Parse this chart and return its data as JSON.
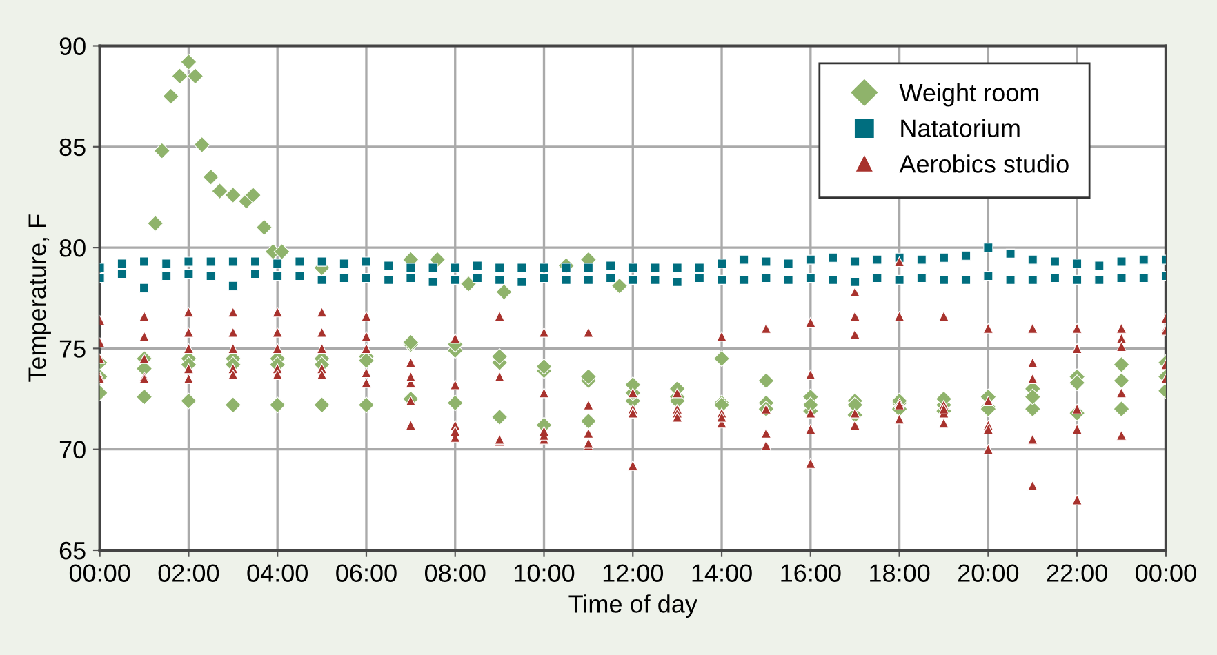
{
  "chart_data": {
    "type": "scatter",
    "xlabel": "Time of day",
    "ylabel": "Temperature, F",
    "xlim": [
      0,
      24
    ],
    "ylim": [
      65,
      90
    ],
    "xticks": [
      {
        "value": 0,
        "label": "00:00"
      },
      {
        "value": 2,
        "label": "02:00"
      },
      {
        "value": 4,
        "label": "04:00"
      },
      {
        "value": 6,
        "label": "06:00"
      },
      {
        "value": 8,
        "label": "08:00"
      },
      {
        "value": 10,
        "label": "10:00"
      },
      {
        "value": 12,
        "label": "12:00"
      },
      {
        "value": 14,
        "label": "14:00"
      },
      {
        "value": 16,
        "label": "16:00"
      },
      {
        "value": 18,
        "label": "18:00"
      },
      {
        "value": 20,
        "label": "20:00"
      },
      {
        "value": 22,
        "label": "22:00"
      },
      {
        "value": 24,
        "label": "00:00"
      }
    ],
    "yticks": [
      65,
      70,
      75,
      80,
      85,
      90
    ],
    "grid": true,
    "legend": "top right",
    "series": [
      {
        "name": "Weight room",
        "color": "#8fb36b",
        "marker": "diamond",
        "x": [
          1.25,
          1.4,
          1.6,
          1.8,
          2.0,
          2.15,
          2.3,
          2.5,
          2.7,
          3.0,
          3.3,
          3.45,
          3.7,
          3.9,
          4.1,
          5.0,
          7.0,
          7.6,
          8.3,
          9.1,
          10.5,
          11.0,
          11.7,
          0,
          1,
          2,
          3,
          4,
          5,
          6,
          7,
          8,
          9,
          10,
          11,
          12,
          13,
          14,
          15,
          16,
          17,
          18,
          19,
          20,
          21,
          22,
          23,
          24,
          0,
          1,
          2,
          3,
          4,
          5,
          6,
          7,
          8,
          9,
          10,
          11,
          12,
          13,
          14,
          15,
          16,
          17,
          18,
          19,
          20,
          21,
          22,
          23,
          24,
          0,
          1,
          2,
          3,
          4,
          5,
          6,
          7,
          8,
          9,
          10,
          11,
          12,
          13,
          14,
          15,
          16,
          17,
          18,
          19,
          20,
          21,
          22,
          23,
          24
        ],
        "values": [
          81.2,
          84.8,
          87.5,
          88.5,
          89.2,
          88.5,
          85.1,
          83.5,
          82.8,
          82.6,
          82.3,
          82.6,
          81.0,
          79.8,
          79.8,
          79.0,
          79.4,
          79.4,
          78.2,
          77.8,
          79.1,
          79.4,
          78.1,
          72.8,
          72.6,
          72.4,
          72.2,
          72.2,
          72.2,
          72.2,
          72.5,
          72.3,
          71.6,
          71.2,
          71.4,
          72.4,
          72.6,
          72.3,
          72.3,
          71.9,
          71.7,
          72.3,
          72.2,
          72.1,
          72.0,
          71.8,
          72.0,
          72.9,
          74.3,
          74.5,
          74.5,
          74.5,
          74.5,
          74.5,
          74.6,
          75.2,
          74.9,
          74.3,
          73.9,
          73.4,
          72.8,
          73.0,
          74.5,
          73.4,
          72.6,
          72.4,
          72.4,
          72.5,
          72.6,
          73.0,
          73.6,
          74.2,
          74.3,
          73.6,
          74.0,
          74.2,
          74.2,
          74.2,
          74.2,
          74.4,
          75.3,
          75.2,
          74.6,
          74.1,
          73.6,
          73.2,
          72.4,
          72.2,
          72.0,
          72.2,
          72.2,
          72.0,
          71.9,
          72.0,
          72.6,
          73.3,
          73.4,
          73.6
        ]
      },
      {
        "name": "Natatorium",
        "color": "#006e7f",
        "marker": "square",
        "x": [
          0,
          0.5,
          1,
          1.5,
          2,
          2.5,
          3,
          3.5,
          4,
          4.5,
          5,
          5.5,
          6,
          6.5,
          7,
          7.5,
          8,
          8.5,
          9,
          9.5,
          10,
          10.5,
          11,
          11.5,
          12,
          12.5,
          13,
          13.5,
          14,
          14.5,
          15,
          15.5,
          16,
          16.5,
          17,
          17.5,
          18,
          18.5,
          19,
          19.5,
          20,
          20.5,
          21,
          21.5,
          22,
          22.5,
          23,
          23.5,
          24,
          0,
          0.5,
          1,
          1.5,
          2,
          2.5,
          3,
          3.5,
          4,
          4.5,
          5,
          5.5,
          6,
          6.5,
          7,
          7.5,
          8,
          8.5,
          9,
          9.5,
          10,
          10.5,
          11,
          11.5,
          12,
          12.5,
          13,
          13.5,
          14,
          14.5,
          15,
          15.5,
          16,
          16.5,
          17,
          17.5,
          18,
          18.5,
          19,
          19.5,
          20,
          20.5,
          21,
          21.5,
          22,
          22.5,
          23,
          23.5,
          24
        ],
        "values": [
          79.0,
          79.2,
          79.3,
          79.2,
          79.3,
          79.3,
          79.3,
          79.3,
          79.2,
          79.3,
          79.3,
          79.2,
          79.3,
          79.1,
          79.0,
          79.0,
          79.0,
          79.1,
          79.0,
          79.0,
          79.0,
          79.0,
          79.0,
          79.1,
          79.0,
          79.0,
          79.0,
          79.0,
          79.2,
          79.4,
          79.3,
          79.2,
          79.4,
          79.5,
          79.3,
          79.4,
          79.5,
          79.4,
          79.5,
          79.6,
          80.0,
          79.7,
          79.4,
          79.3,
          79.2,
          79.1,
          79.3,
          79.4,
          79.4,
          78.5,
          78.7,
          78.0,
          78.6,
          78.7,
          78.6,
          78.1,
          78.7,
          78.6,
          78.6,
          78.4,
          78.5,
          78.5,
          78.4,
          78.5,
          78.3,
          78.4,
          78.5,
          78.4,
          78.3,
          78.5,
          78.4,
          78.4,
          78.5,
          78.4,
          78.4,
          78.3,
          78.5,
          78.4,
          78.4,
          78.5,
          78.4,
          78.5,
          78.4,
          78.3,
          78.5,
          78.4,
          78.5,
          78.4,
          78.4,
          78.6,
          78.4,
          78.4,
          78.5,
          78.4,
          78.4,
          78.5,
          78.5,
          78.6
        ]
      },
      {
        "name": "Aerobics studio",
        "color": "#a8322d",
        "marker": "triangle",
        "x": [
          0,
          1,
          2,
          3,
          4,
          5,
          6,
          7,
          8,
          9,
          10,
          11,
          12,
          13,
          14,
          15,
          16,
          17,
          18,
          19,
          20,
          21,
          22,
          23,
          24,
          0,
          1,
          2,
          3,
          4,
          5,
          6,
          7,
          8,
          9,
          10,
          11,
          12,
          13,
          14,
          15,
          16,
          17,
          18,
          19,
          20,
          21,
          22,
          23,
          24,
          0,
          1,
          2,
          3,
          4,
          5,
          6,
          7,
          8,
          9,
          10,
          11,
          12,
          13,
          14,
          15,
          16,
          17,
          18,
          19,
          20,
          21,
          22,
          23,
          24,
          0,
          1,
          2,
          3,
          4,
          5,
          6,
          7,
          8,
          9,
          10,
          11,
          12,
          13,
          14,
          15,
          16,
          17,
          18,
          19,
          20,
          21,
          22,
          23,
          24,
          0,
          1,
          2,
          3,
          4,
          5,
          6,
          7,
          8,
          9,
          10,
          11,
          12,
          13,
          14,
          15,
          16,
          17,
          18,
          19,
          20,
          21,
          22,
          23,
          24
        ],
        "values": [
          76.4,
          76.6,
          76.8,
          76.8,
          76.8,
          76.8,
          76.6,
          71.2,
          70.6,
          70.4,
          70.5,
          70.2,
          69.2,
          72.8,
          75.6,
          76.0,
          76.3,
          76.6,
          76.6,
          76.6,
          76.0,
          76.0,
          76.0,
          76.0,
          76.5,
          75.3,
          75.6,
          75.8,
          75.8,
          75.8,
          75.8,
          75.6,
          74.3,
          75.5,
          76.6,
          75.8,
          75.8,
          72.8,
          72.0,
          71.3,
          70.8,
          69.3,
          77.8,
          79.3,
          72.2,
          71.2,
          70.5,
          72.0,
          75.5,
          76.0,
          74.5,
          74.5,
          75.0,
          75.0,
          75.0,
          75.0,
          75.0,
          73.3,
          73.2,
          73.6,
          72.8,
          72.2,
          72.0,
          72.0,
          71.8,
          72.0,
          73.7,
          75.7,
          72.3,
          71.8,
          70.0,
          68.2,
          67.5,
          70.7,
          74.2,
          73.6,
          73.6,
          74.0,
          74.0,
          74.0,
          74.0,
          73.8,
          73.6,
          71.2,
          70.5,
          70.7,
          70.8,
          71.8,
          71.8,
          71.8,
          72.0,
          71.8,
          71.8,
          72.2,
          72.0,
          71.0,
          74.3,
          71.0,
          72.8,
          73.5,
          73.5,
          73.5,
          73.5,
          73.7,
          73.7,
          73.7,
          73.3,
          72.4,
          70.9,
          70.5,
          70.9,
          70.3,
          71.8,
          71.6,
          71.6,
          70.2,
          71.0,
          71.2,
          71.5,
          71.3,
          72.4,
          73.5,
          75.0,
          75.1,
          75.9
        ]
      }
    ]
  }
}
